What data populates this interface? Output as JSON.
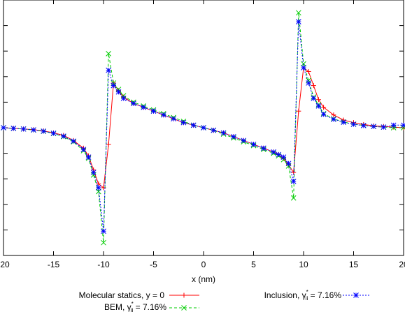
{
  "chart_data": {
    "type": "line",
    "title": "",
    "xlabel": "x (nm)",
    "ylabel": "",
    "xlim": [
      -20,
      20
    ],
    "ylim": [
      -1.0,
      1.0
    ],
    "grid": false,
    "legend_position": "bottom",
    "x_ticks": [
      "-20",
      "-15",
      "-10",
      "-5",
      "0",
      "5",
      "10",
      "15",
      "20"
    ],
    "series": [
      {
        "name": "Molecular statics, y = 0",
        "color": "#ff0000",
        "marker": "plus",
        "dash": "solid",
        "x": [
          -20,
          -19,
          -18,
          -17,
          -16,
          -15,
          -14,
          -13,
          -12,
          -11.5,
          -11,
          -10.5,
          -10,
          -9.5,
          -9,
          -8.5,
          -8,
          -7,
          -6,
          -5,
          -4,
          -3,
          -2,
          -1,
          0,
          1,
          2,
          3,
          4,
          5,
          6,
          7,
          7.5,
          8,
          8.5,
          9,
          9.5,
          10,
          10.5,
          11,
          11.5,
          12,
          13,
          14,
          15,
          16,
          17,
          18,
          19,
          20
        ],
        "y": [
          0.0,
          -0.005,
          -0.01,
          -0.015,
          -0.025,
          -0.04,
          -0.06,
          -0.1,
          -0.16,
          -0.22,
          -0.33,
          -0.44,
          -0.47,
          -0.13,
          0.35,
          0.29,
          0.24,
          0.19,
          0.16,
          0.13,
          0.1,
          0.07,
          0.04,
          0.02,
          0.0,
          -0.02,
          -0.04,
          -0.07,
          -0.1,
          -0.13,
          -0.16,
          -0.19,
          -0.21,
          -0.24,
          -0.29,
          -0.35,
          0.13,
          0.47,
          0.44,
          0.33,
          0.22,
          0.16,
          0.1,
          0.06,
          0.04,
          0.025,
          0.015,
          0.01,
          0.005,
          0.0
        ]
      },
      {
        "name": "BEM, γ*ii = 7.16%",
        "color": "#00cc00",
        "marker": "x",
        "dash": "dashed",
        "x": [
          -20,
          -19,
          -18,
          -17,
          -16,
          -15,
          -14,
          -13,
          -12,
          -11.5,
          -11,
          -10.5,
          -10,
          -9.5,
          -9,
          -8.5,
          -8,
          -7,
          -6,
          -5,
          -4,
          -3,
          -2,
          -1,
          0,
          1,
          2,
          3,
          4,
          5,
          6,
          7,
          7.5,
          8,
          8.5,
          9,
          9.5,
          10,
          10.5,
          11,
          11.5,
          12,
          13,
          14,
          15,
          16,
          17,
          18,
          19,
          20
        ],
        "y": [
          0.0,
          -0.005,
          -0.01,
          -0.018,
          -0.028,
          -0.045,
          -0.07,
          -0.11,
          -0.18,
          -0.24,
          -0.37,
          -0.5,
          -0.9,
          0.58,
          0.35,
          0.3,
          0.25,
          0.2,
          0.17,
          0.14,
          0.11,
          0.08,
          0.05,
          0.02,
          0.0,
          -0.02,
          -0.05,
          -0.08,
          -0.11,
          -0.14,
          -0.17,
          -0.2,
          -0.22,
          -0.25,
          -0.3,
          -0.55,
          0.9,
          0.5,
          0.37,
          0.24,
          0.18,
          0.11,
          0.07,
          0.045,
          0.028,
          0.018,
          0.01,
          0.005,
          0.0,
          0.0
        ]
      },
      {
        "name": "Inclusion, γ*ii = 7.16%",
        "color": "#0000ff",
        "marker": "star",
        "dash": "dotted",
        "x": [
          -20,
          -19,
          -18,
          -17,
          -16,
          -15,
          -14,
          -13,
          -12,
          -11.5,
          -11,
          -10.5,
          -10,
          -9.5,
          -9,
          -8.5,
          -8,
          -7,
          -6,
          -5,
          -4,
          -3,
          -2,
          -1,
          0,
          1,
          2,
          3,
          4,
          5,
          6,
          7,
          7.5,
          8,
          8.5,
          9,
          9.5,
          10,
          10.5,
          11,
          11.5,
          12,
          13,
          14,
          15,
          16,
          17,
          18,
          19,
          20
        ],
        "y": [
          0.0,
          -0.005,
          -0.01,
          -0.017,
          -0.027,
          -0.043,
          -0.066,
          -0.105,
          -0.17,
          -0.23,
          -0.35,
          -0.47,
          -0.81,
          0.45,
          0.33,
          0.28,
          0.23,
          0.19,
          0.16,
          0.13,
          0.1,
          0.07,
          0.04,
          0.02,
          0.0,
          -0.02,
          -0.04,
          -0.07,
          -0.1,
          -0.13,
          -0.16,
          -0.19,
          -0.21,
          -0.23,
          -0.28,
          -0.42,
          0.83,
          0.47,
          0.35,
          0.23,
          0.17,
          0.105,
          0.066,
          0.043,
          0.027,
          0.017,
          0.01,
          0.005,
          0.02,
          0.02
        ]
      }
    ]
  },
  "legend": {
    "items": [
      {
        "label": "Molecular statics, y = 0"
      },
      {
        "label_prefix": "Inclusion, ",
        "gamma": "γ",
        "sup": "*",
        "sub": "ii",
        "label_suffix": " = 7.16%"
      },
      {
        "label_prefix": "BEM, ",
        "gamma": "γ",
        "sup": "*",
        "sub": "ii",
        "label_suffix": " = 7.16%"
      }
    ]
  }
}
